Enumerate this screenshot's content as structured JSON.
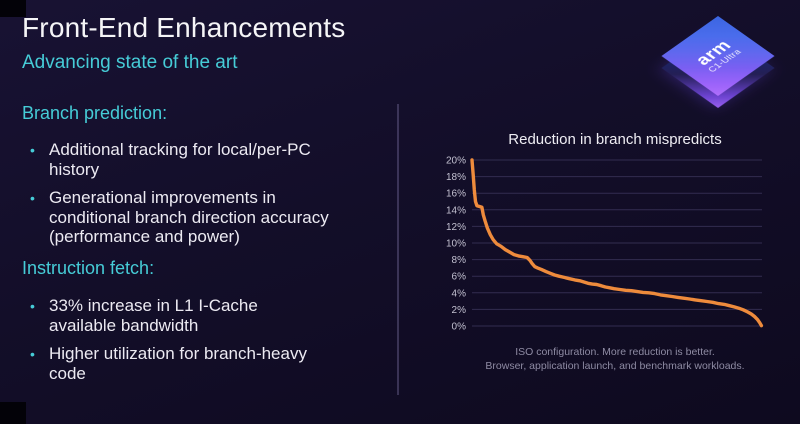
{
  "slide": {
    "title": "Front-End Enhancements",
    "subtitle": "Advancing state of the art"
  },
  "bullet_char": "•",
  "chip": {
    "brand": "arm",
    "model": "C1-Ultra"
  },
  "sections": [
    {
      "heading": "Branch prediction:",
      "bullets": [
        "Additional tracking for local/per-PC\nhistory",
        "Generational improvements in\nconditional branch direction accuracy\n(performance and power)"
      ]
    },
    {
      "heading": "Instruction fetch:",
      "bullets": [
        "33% increase in L1 I-Cache\navailable bandwidth",
        "Higher utilization for branch-heavy\ncode"
      ]
    }
  ],
  "chart_data": {
    "type": "line",
    "title": "Reduction in branch mispredicts",
    "xlabel": "",
    "ylabel": "",
    "ylim": [
      0,
      20
    ],
    "y_ticks": [
      "20%",
      "18%",
      "16%",
      "14%",
      "12%",
      "10%",
      "8%",
      "6%",
      "4%",
      "2%",
      "0%"
    ],
    "x_ticks": [],
    "grid": true,
    "legend": false,
    "caption": "ISO configuration.  More reduction is better.\nBrowser, application launch, and benchmark workloads.",
    "series": [
      {
        "name": "Reduction in branch mispredicts",
        "color": "#EE8B3C",
        "points": [
          [
            0,
            20.0
          ],
          [
            0.4,
            18.2
          ],
          [
            0.8,
            16.4
          ],
          [
            1.2,
            15.0
          ],
          [
            1.7,
            14.5
          ],
          [
            2.6,
            14.4
          ],
          [
            3.4,
            14.3
          ],
          [
            3.9,
            13.4
          ],
          [
            4.5,
            12.7
          ],
          [
            5.3,
            11.8
          ],
          [
            6.3,
            11.0
          ],
          [
            7.3,
            10.4
          ],
          [
            8.5,
            9.9
          ],
          [
            10,
            9.6
          ],
          [
            11.5,
            9.2
          ],
          [
            13,
            8.9
          ],
          [
            14.5,
            8.6
          ],
          [
            16,
            8.45
          ],
          [
            17.5,
            8.35
          ],
          [
            19,
            8.25
          ],
          [
            20,
            7.9
          ],
          [
            20.8,
            7.5
          ],
          [
            21.7,
            7.15
          ],
          [
            22.6,
            7.0
          ],
          [
            24,
            6.8
          ],
          [
            25.5,
            6.55
          ],
          [
            27,
            6.35
          ],
          [
            28.5,
            6.15
          ],
          [
            30,
            6.0
          ],
          [
            31.8,
            5.85
          ],
          [
            33.6,
            5.7
          ],
          [
            35.4,
            5.55
          ],
          [
            37.2,
            5.45
          ],
          [
            38.6,
            5.3
          ],
          [
            40,
            5.15
          ],
          [
            41.5,
            5.05
          ],
          [
            43,
            5.0
          ],
          [
            44.5,
            4.85
          ],
          [
            46,
            4.7
          ],
          [
            47.5,
            4.6
          ],
          [
            49,
            4.5
          ],
          [
            51,
            4.4
          ],
          [
            53,
            4.3
          ],
          [
            55,
            4.25
          ],
          [
            57,
            4.15
          ],
          [
            59,
            4.05
          ],
          [
            61,
            4.0
          ],
          [
            63,
            3.9
          ],
          [
            65,
            3.75
          ],
          [
            67,
            3.65
          ],
          [
            69,
            3.55
          ],
          [
            71,
            3.45
          ],
          [
            73,
            3.35
          ],
          [
            75,
            3.25
          ],
          [
            77,
            3.15
          ],
          [
            79,
            3.05
          ],
          [
            81,
            2.95
          ],
          [
            83,
            2.85
          ],
          [
            85,
            2.7
          ],
          [
            87,
            2.6
          ],
          [
            88.8,
            2.45
          ],
          [
            90.4,
            2.3
          ],
          [
            92,
            2.15
          ],
          [
            93.5,
            1.95
          ],
          [
            95,
            1.7
          ],
          [
            96.3,
            1.45
          ],
          [
            97.4,
            1.15
          ],
          [
            98.4,
            0.8
          ],
          [
            99.2,
            0.4
          ],
          [
            99.8,
            0.05
          ]
        ]
      }
    ]
  },
  "colors": {
    "background": "#130E29",
    "accent_cyan": "#46CCD7",
    "line_orange": "#EE8B3C",
    "chip_blue": "#3B66E2",
    "chip_purple": "#9B63FA"
  }
}
